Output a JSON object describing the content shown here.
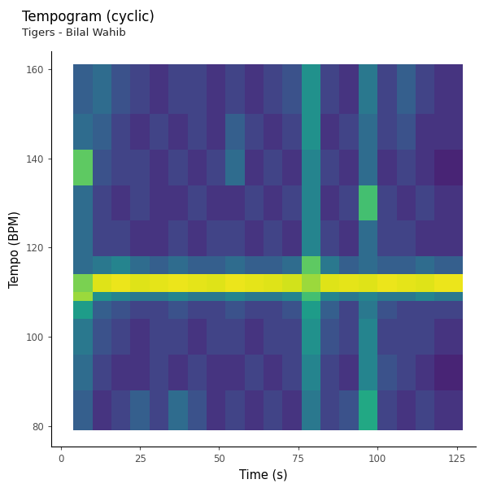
{
  "chart_data": {
    "type": "heatmap",
    "title": "Tempogram (cyclic)",
    "subtitle": "Tigers - Bilal Wahib",
    "x_label": "Time (s)",
    "y_label": "Tempo (BPM)",
    "xlim": [
      -3,
      131
    ],
    "ylim": [
      75.4,
      164
    ],
    "xticks": [
      0,
      25,
      50,
      75,
      100,
      125
    ],
    "yticks": [
      80,
      100,
      120,
      140,
      160
    ],
    "grid": false,
    "color": "viridis",
    "value_range": [
      0,
      1
    ],
    "x_edges": [
      4,
      10,
      16,
      22,
      28,
      34,
      40,
      46,
      52,
      58,
      64,
      70,
      76,
      82,
      88,
      94,
      100,
      106,
      112,
      118,
      127
    ],
    "y_edges": [
      79,
      88,
      96,
      104,
      108,
      110,
      114,
      118,
      126,
      134,
      142,
      150,
      161
    ],
    "cells": [
      [
        0.3,
        0.15,
        0.2,
        0.3,
        0.2,
        0.35,
        0.25,
        0.15,
        0.2,
        0.15,
        0.2,
        0.15,
        0.4,
        0.2,
        0.25,
        0.6,
        0.2,
        0.15,
        0.2,
        0.15
      ],
      [
        0.35,
        0.2,
        0.15,
        0.15,
        0.2,
        0.15,
        0.2,
        0.15,
        0.15,
        0.2,
        0.15,
        0.2,
        0.45,
        0.2,
        0.15,
        0.45,
        0.25,
        0.2,
        0.15,
        0.1
      ],
      [
        0.4,
        0.25,
        0.2,
        0.15,
        0.2,
        0.2,
        0.15,
        0.2,
        0.2,
        0.15,
        0.2,
        0.2,
        0.5,
        0.25,
        0.2,
        0.45,
        0.2,
        0.2,
        0.2,
        0.15
      ],
      [
        0.55,
        0.3,
        0.25,
        0.2,
        0.2,
        0.25,
        0.2,
        0.2,
        0.25,
        0.2,
        0.2,
        0.25,
        0.55,
        0.3,
        0.2,
        0.4,
        0.25,
        0.2,
        0.2,
        0.2
      ],
      [
        0.85,
        0.5,
        0.45,
        0.4,
        0.4,
        0.45,
        0.4,
        0.4,
        0.45,
        0.4,
        0.4,
        0.45,
        0.7,
        0.45,
        0.4,
        0.45,
        0.4,
        0.4,
        0.45,
        0.4
      ],
      [
        0.8,
        0.95,
        0.97,
        0.95,
        0.96,
        0.97,
        0.96,
        0.95,
        0.97,
        0.96,
        0.95,
        0.93,
        0.85,
        0.95,
        0.96,
        0.95,
        0.97,
        0.96,
        0.95,
        0.97
      ],
      [
        0.35,
        0.4,
        0.45,
        0.35,
        0.3,
        0.35,
        0.3,
        0.3,
        0.35,
        0.3,
        0.3,
        0.35,
        0.75,
        0.4,
        0.3,
        0.35,
        0.3,
        0.3,
        0.35,
        0.3
      ],
      [
        0.35,
        0.2,
        0.2,
        0.15,
        0.15,
        0.2,
        0.15,
        0.2,
        0.2,
        0.15,
        0.2,
        0.15,
        0.45,
        0.2,
        0.15,
        0.35,
        0.2,
        0.2,
        0.15,
        0.15
      ],
      [
        0.35,
        0.2,
        0.15,
        0.2,
        0.15,
        0.15,
        0.2,
        0.15,
        0.15,
        0.2,
        0.15,
        0.2,
        0.45,
        0.15,
        0.2,
        0.7,
        0.2,
        0.15,
        0.2,
        0.15
      ],
      [
        0.75,
        0.25,
        0.2,
        0.2,
        0.15,
        0.2,
        0.15,
        0.2,
        0.35,
        0.15,
        0.2,
        0.15,
        0.45,
        0.2,
        0.15,
        0.35,
        0.15,
        0.2,
        0.15,
        0.1
      ],
      [
        0.35,
        0.3,
        0.2,
        0.15,
        0.2,
        0.15,
        0.2,
        0.15,
        0.3,
        0.2,
        0.15,
        0.2,
        0.5,
        0.15,
        0.2,
        0.35,
        0.2,
        0.25,
        0.15,
        0.15
      ],
      [
        0.3,
        0.35,
        0.25,
        0.2,
        0.15,
        0.2,
        0.2,
        0.15,
        0.2,
        0.15,
        0.2,
        0.25,
        0.5,
        0.2,
        0.15,
        0.4,
        0.2,
        0.3,
        0.2,
        0.15
      ]
    ]
  }
}
